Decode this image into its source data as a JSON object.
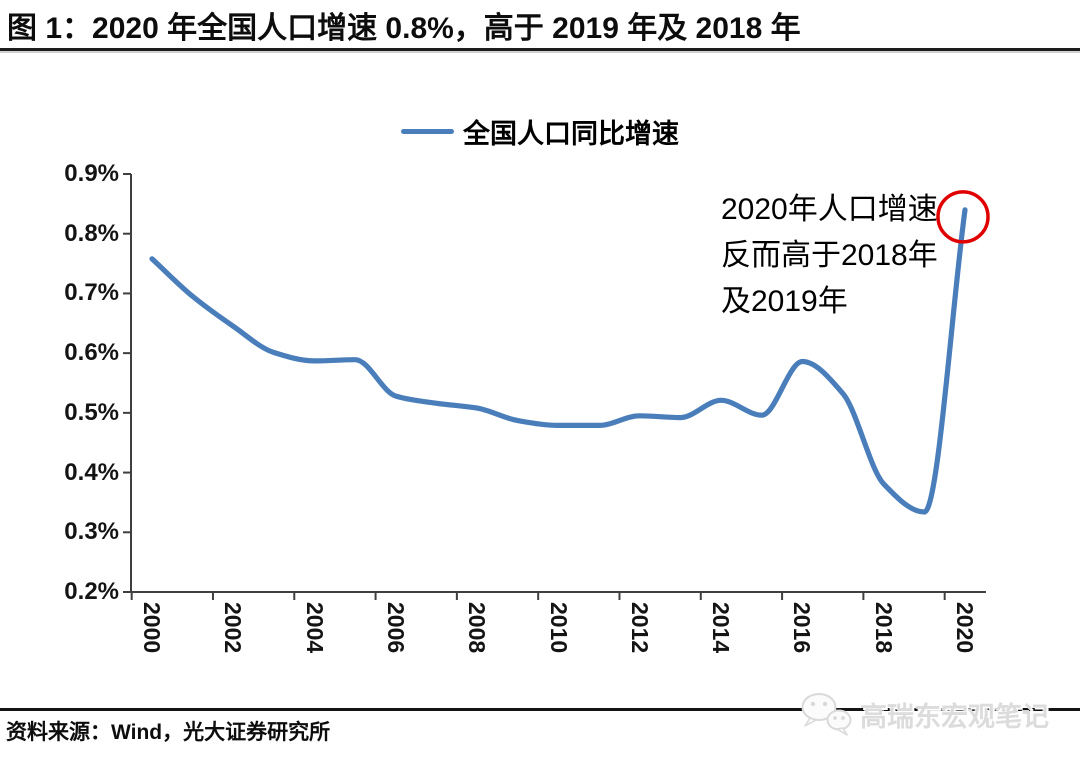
{
  "chart_data": {
    "type": "line",
    "title": "图 1：2020 年全国人口增速 0.8%，高于 2019 年及 2018 年",
    "x": [
      2000,
      2001,
      2002,
      2003,
      2004,
      2005,
      2006,
      2007,
      2008,
      2009,
      2010,
      2011,
      2012,
      2013,
      2014,
      2015,
      2016,
      2017,
      2018,
      2019,
      2020
    ],
    "series": [
      {
        "name": "全国人口同比增速",
        "color": "#4A7EBB",
        "values": [
          0.758,
          0.695,
          0.645,
          0.601,
          0.587,
          0.589,
          0.528,
          0.516,
          0.508,
          0.487,
          0.479,
          0.479,
          0.495,
          0.492,
          0.521,
          0.496,
          0.586,
          0.532,
          0.381,
          0.334,
          0.84
        ]
      }
    ],
    "ylim": [
      0.2,
      0.9
    ],
    "y_tick_step": 0.1,
    "y_tick_suffix": "%",
    "x_tick_labels": [
      "2000",
      "2002",
      "2004",
      "2006",
      "2008",
      "2010",
      "2012",
      "2014",
      "2016",
      "2018",
      "2020"
    ],
    "x_label_rotation": 90,
    "grid": false,
    "legend_position": "top-center",
    "annotation": {
      "lines": [
        "2020年人口增速",
        "反而高于2018年",
        "及2019年"
      ],
      "highlight_year": 2020,
      "highlight_value": 0.84,
      "circle_color": "#E00000"
    }
  },
  "source": "资料来源：Wind，光大证券研究所",
  "watermark": {
    "label": "高瑞东宏观笔记",
    "icon": "wechat-icon"
  },
  "colors": {
    "axis": "#3F3F3F",
    "rule": "#1A1A1A",
    "watermark": "#DCDCDC"
  }
}
